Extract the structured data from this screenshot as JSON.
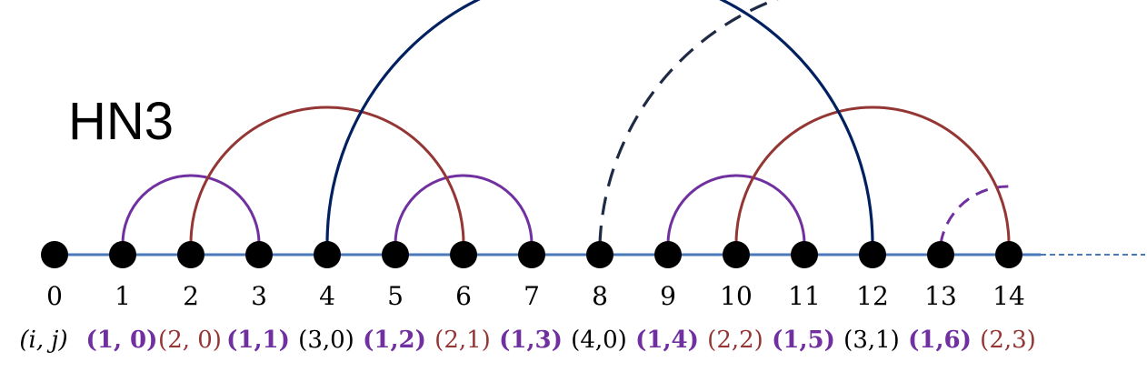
{
  "title": "HN3",
  "colors": {
    "axis": "#4a78b8",
    "node": "#000000",
    "level1": "#7030a0",
    "level2": "#943634",
    "level3": "#002060",
    "level4": "#1f2a44"
  },
  "nodes": [
    "0",
    "1",
    "2",
    "3",
    "4",
    "5",
    "6",
    "7",
    "8",
    "9",
    "10",
    "11",
    "12",
    "13",
    "14"
  ],
  "index_header": "(i, j)",
  "pair_labels": [
    {
      "text": "(1, 0)",
      "level": 1
    },
    {
      "text": "(2, 0)",
      "level": 2
    },
    {
      "text": "(1,1)",
      "level": 1
    },
    {
      "text": "(3,0)",
      "level": 3
    },
    {
      "text": "(1,2)",
      "level": 1
    },
    {
      "text": "(2,1)",
      "level": 2
    },
    {
      "text": "(1,3)",
      "level": 1
    },
    {
      "text": "(4,0)",
      "level": 4
    },
    {
      "text": "(1,4)",
      "level": 1
    },
    {
      "text": "(2,2)",
      "level": 2
    },
    {
      "text": "(1,5)",
      "level": 1
    },
    {
      "text": "(3,1)",
      "level": 3
    },
    {
      "text": "(1,6)",
      "level": 1
    },
    {
      "text": "(2,3)",
      "level": 2
    }
  ],
  "arcs": [
    {
      "from": 1,
      "to": 3,
      "level": 1,
      "style": "solid"
    },
    {
      "from": 5,
      "to": 7,
      "level": 1,
      "style": "solid"
    },
    {
      "from": 9,
      "to": 11,
      "level": 1,
      "style": "solid"
    },
    {
      "from": 13,
      "to": 15,
      "level": 1,
      "style": "dashed"
    },
    {
      "from": 2,
      "to": 6,
      "level": 2,
      "style": "solid"
    },
    {
      "from": 10,
      "to": 14,
      "level": 2,
      "style": "solid"
    },
    {
      "from": 4,
      "to": 12,
      "level": 3,
      "style": "solid"
    },
    {
      "from": 8,
      "to": 16,
      "level": 4,
      "style": "dashed"
    }
  ]
}
